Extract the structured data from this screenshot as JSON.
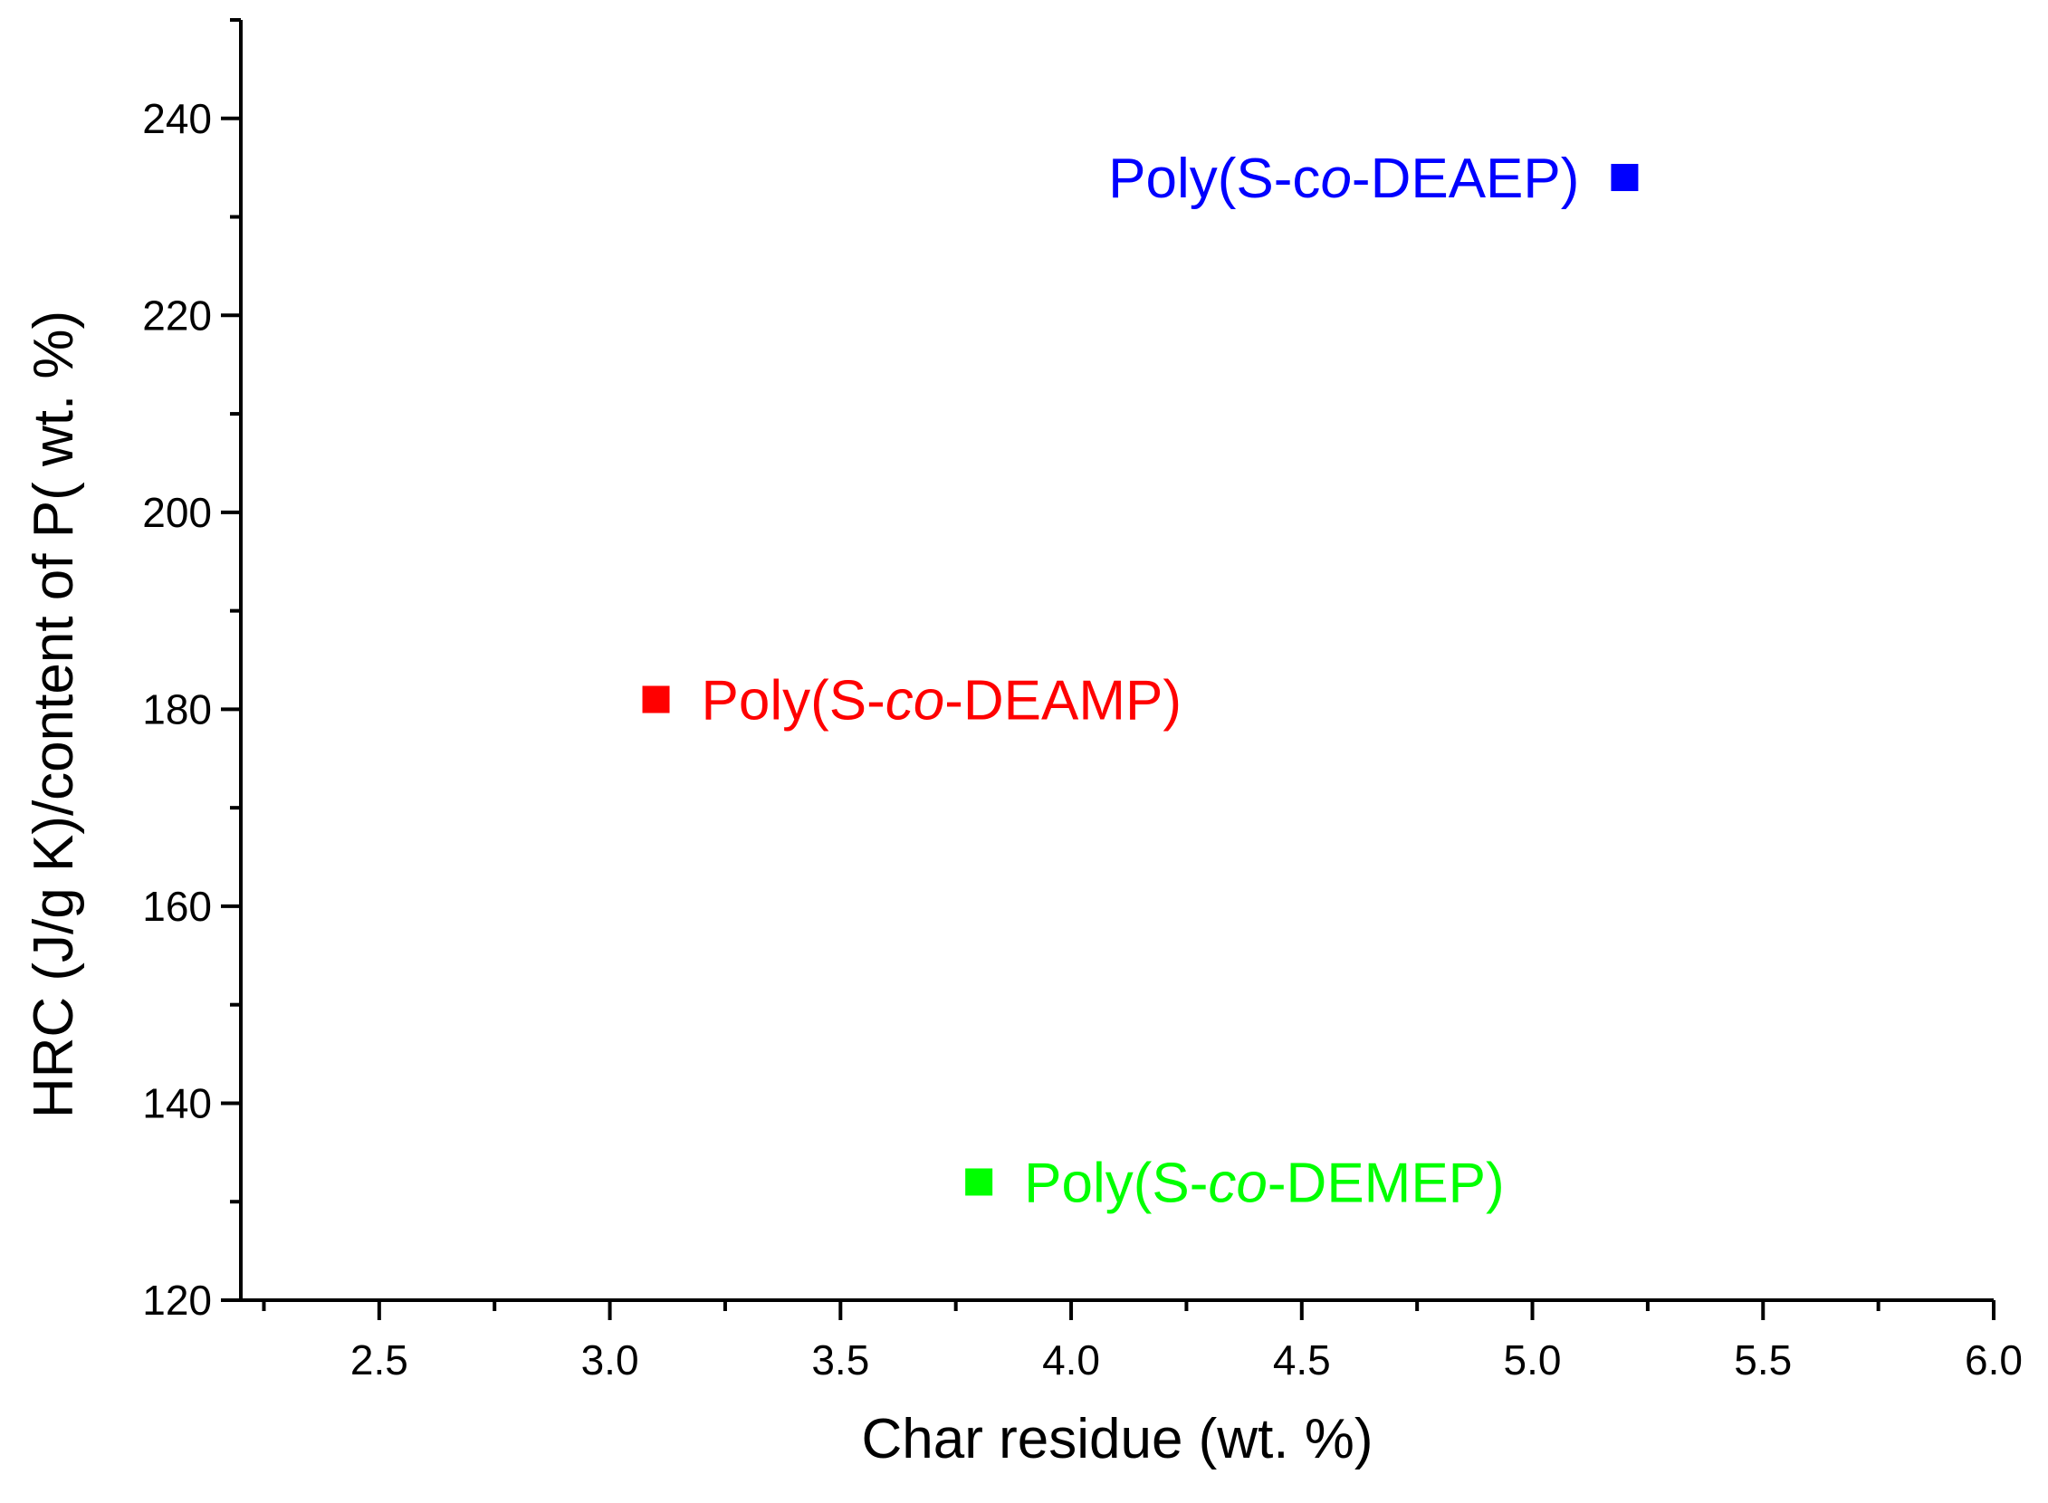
{
  "chart_data": {
    "type": "scatter",
    "title": "",
    "xlabel": "Char residue (wt. %)",
    "ylabel": "HRC (J/g K)/content of P( wt. %)",
    "xlim": [
      2.2,
      6.0
    ],
    "ylim": [
      120,
      250
    ],
    "x_ticks": [
      2.5,
      3.0,
      3.5,
      4.0,
      4.5,
      5.0,
      5.5,
      6.0
    ],
    "x_tick_labels": [
      "2.5",
      "3.0",
      "3.5",
      "4.0",
      "4.5",
      "5.0",
      "5.5",
      "6.0"
    ],
    "x_minor_ticks": [
      2.25,
      2.75,
      3.25,
      3.75,
      4.25,
      4.75,
      5.25,
      5.75
    ],
    "y_ticks": [
      120,
      140,
      160,
      180,
      200,
      220,
      240
    ],
    "y_tick_labels": [
      "120",
      "140",
      "160",
      "180",
      "200",
      "220",
      "240"
    ],
    "y_minor_ticks": [
      130,
      150,
      170,
      190,
      210,
      230,
      250
    ],
    "grid": false,
    "legend": "none",
    "series": [
      {
        "name": "Poly(S-co-DEAEP)",
        "color": "#0000ff",
        "x": [
          5.2
        ],
        "y": [
          234
        ],
        "label_parts": [
          {
            "text": "Poly(S-c",
            "italic": false
          },
          {
            "text": "o",
            "italic": true
          },
          {
            "text": "-DEAEP)",
            "italic": false
          }
        ],
        "label_side": "left"
      },
      {
        "name": "Poly(S-co-DEAMP)",
        "color": "#ff0000",
        "x": [
          3.1
        ],
        "y": [
          181
        ],
        "label_parts": [
          {
            "text": "Poly(S-",
            "italic": false
          },
          {
            "text": "co",
            "italic": true
          },
          {
            "text": "-DEAMP)",
            "italic": false
          }
        ],
        "label_side": "right"
      },
      {
        "name": "Poly(S-co-DEMEP)",
        "color": "#00ff00",
        "x": [
          3.8
        ],
        "y": [
          132
        ],
        "label_parts": [
          {
            "text": "Poly(S-",
            "italic": false
          },
          {
            "text": "co",
            "italic": true
          },
          {
            "text": "-DEMEP)",
            "italic": false
          }
        ],
        "label_side": "right"
      }
    ]
  }
}
